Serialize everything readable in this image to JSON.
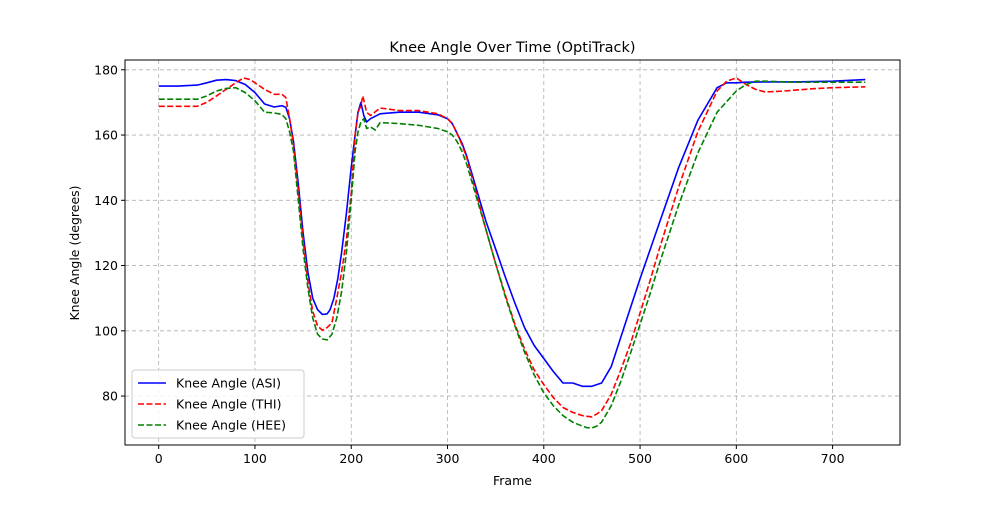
{
  "chart_data": {
    "type": "line",
    "title": "Knee Angle Over Time (OptiTrack)",
    "xlabel": "Frame",
    "ylabel": "Knee Angle (degrees)",
    "xlim": [
      -35,
      770
    ],
    "ylim": [
      65,
      183
    ],
    "xticks": [
      0,
      100,
      200,
      300,
      400,
      500,
      600,
      700
    ],
    "yticks": [
      80,
      100,
      120,
      140,
      160,
      180
    ],
    "grid": true,
    "legend_position": "lower-left",
    "series": [
      {
        "name": "Knee Angle (ASI)",
        "color": "#0000ff",
        "dash": "solid",
        "x": [
          0,
          20,
          40,
          50,
          60,
          70,
          80,
          90,
          100,
          110,
          120,
          128,
          132,
          136,
          140,
          145,
          150,
          155,
          160,
          165,
          170,
          175,
          178,
          182,
          186,
          190,
          195,
          200,
          204,
          207,
          210,
          213,
          216,
          220,
          230,
          250,
          270,
          290,
          300,
          305,
          310,
          315,
          320,
          330,
          340,
          350,
          360,
          370,
          380,
          390,
          400,
          410,
          420,
          430,
          440,
          445,
          450,
          455,
          460,
          470,
          480,
          490,
          500,
          510,
          520,
          540,
          560,
          580,
          590,
          600,
          610,
          630,
          660,
          700,
          734
        ],
        "y": [
          175,
          175,
          175.3,
          176,
          176.8,
          177,
          176.7,
          175.5,
          173,
          169.5,
          168.6,
          169,
          168.5,
          165,
          158,
          145,
          130,
          118,
          110,
          106.5,
          105,
          105.2,
          106.5,
          110,
          116,
          124,
          136,
          150,
          160,
          167,
          170,
          166,
          164,
          165,
          166.5,
          167,
          167,
          166.2,
          165,
          163.5,
          160.5,
          157.5,
          153.5,
          143.5,
          133.5,
          125,
          116.5,
          108.5,
          101,
          95.5,
          91.5,
          87.5,
          84,
          84,
          83,
          83,
          83,
          83.5,
          84,
          89,
          98,
          107,
          116,
          124.5,
          133,
          150,
          164.5,
          174.5,
          176,
          176,
          176.2,
          176.3,
          176.3,
          176.5,
          177
        ]
      },
      {
        "name": "Knee Angle (THI)",
        "color": "#ff0000",
        "dash": "dashed",
        "x": [
          0,
          20,
          40,
          50,
          60,
          70,
          80,
          88,
          95,
          100,
          110,
          120,
          128,
          132,
          136,
          140,
          145,
          150,
          155,
          160,
          165,
          170,
          175,
          180,
          185,
          190,
          195,
          200,
          204,
          207,
          210,
          212,
          216,
          220,
          230,
          250,
          270,
          290,
          300,
          305,
          310,
          315,
          320,
          330,
          340,
          350,
          360,
          370,
          380,
          390,
          400,
          410,
          420,
          430,
          440,
          445,
          450,
          455,
          460,
          470,
          480,
          490,
          500,
          510,
          520,
          540,
          560,
          580,
          590,
          600,
          605,
          610,
          620,
          630,
          650,
          680,
          700,
          734
        ],
        "y": [
          168.8,
          168.8,
          168.8,
          170,
          172,
          174,
          176,
          177.5,
          177,
          176,
          174,
          172.5,
          172.5,
          171.5,
          165,
          157,
          143,
          128,
          115,
          106,
          101.5,
          100.2,
          101,
          102.5,
          110,
          118,
          128,
          142,
          160,
          167,
          169,
          172,
          167,
          166,
          168.3,
          167.5,
          167.5,
          166.5,
          165,
          163.5,
          160.5,
          157,
          153,
          142,
          131,
          120.5,
          111,
          102,
          94.5,
          88,
          83.5,
          79.5,
          76.5,
          75,
          74,
          73.8,
          73.6,
          74.5,
          75.5,
          80.5,
          88,
          96,
          105.5,
          115,
          125,
          144,
          161,
          173.5,
          176.5,
          177.5,
          176.5,
          175.5,
          174,
          173.2,
          173.5,
          174.2,
          174.5,
          174.8
        ]
      },
      {
        "name": "Knee Angle (HEE)",
        "color": "#008000",
        "dash": "dashed",
        "x": [
          0,
          20,
          40,
          50,
          60,
          70,
          80,
          90,
          100,
          110,
          120,
          128,
          132,
          136,
          140,
          145,
          150,
          155,
          160,
          165,
          170,
          175,
          180,
          185,
          190,
          195,
          200,
          204,
          207,
          210,
          213,
          216,
          220,
          225,
          230,
          250,
          270,
          290,
          300,
          305,
          310,
          315,
          320,
          330,
          340,
          350,
          360,
          370,
          380,
          390,
          400,
          410,
          420,
          430,
          440,
          445,
          450,
          455,
          460,
          470,
          480,
          490,
          500,
          510,
          520,
          540,
          560,
          580,
          600,
          610,
          620,
          630,
          660,
          700,
          734
        ],
        "y": [
          171,
          171,
          171,
          172,
          173.5,
          174.3,
          174.5,
          173,
          170.5,
          167,
          166.8,
          166.3,
          165,
          161,
          155,
          140,
          125,
          113,
          104,
          99,
          97.5,
          97.2,
          99,
          104,
          112,
          124,
          140,
          155,
          161,
          164,
          165,
          162,
          162.5,
          161.5,
          163.8,
          163.5,
          163,
          162,
          161,
          160,
          158,
          155,
          151,
          141,
          131,
          120.5,
          110.5,
          101.5,
          93.5,
          86.5,
          81,
          77,
          74,
          72,
          70.8,
          70.3,
          70.2,
          70.8,
          72,
          77,
          84.5,
          93,
          102,
          111,
          120.5,
          138.5,
          154.5,
          167,
          173.5,
          175.5,
          176.5,
          176.5,
          176.2,
          176.2,
          176.2
        ]
      }
    ]
  }
}
